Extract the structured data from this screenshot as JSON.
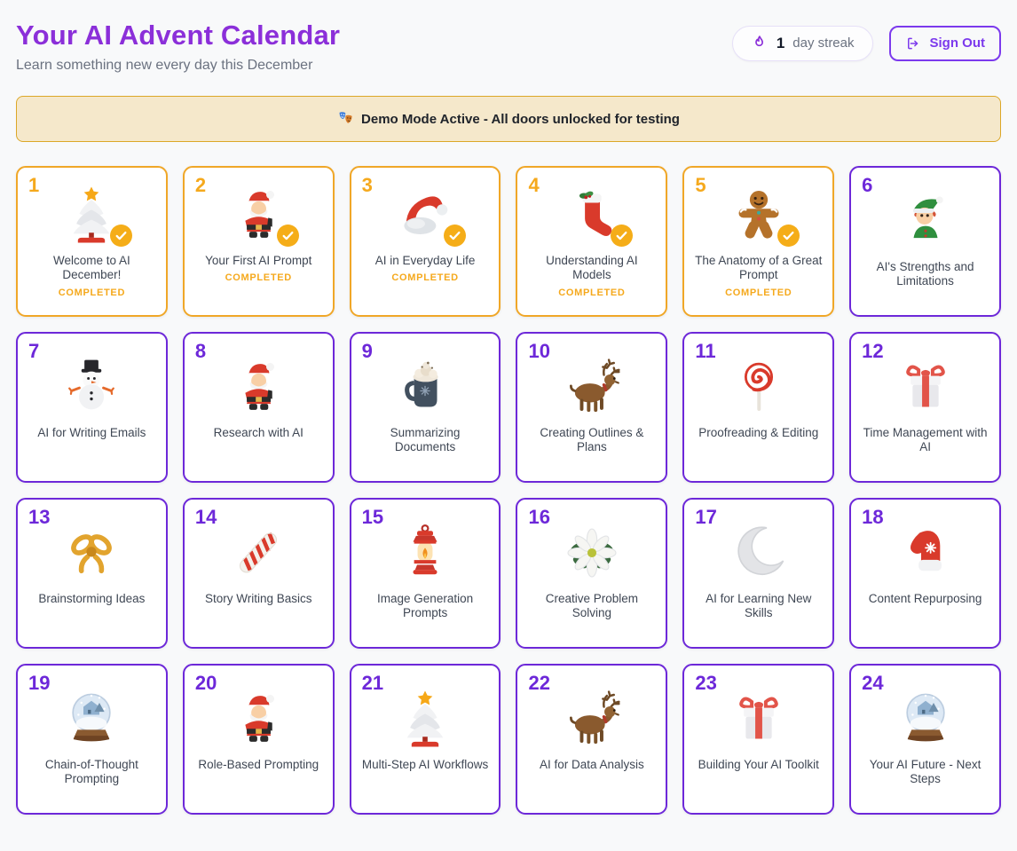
{
  "page": {
    "title": "Your AI Advent Calendar",
    "subtitle": "Learn something new every day this December"
  },
  "header": {
    "streak_count": "1",
    "streak_label": "day streak",
    "streak_icon": "flame-icon",
    "sign_out_label": "Sign Out",
    "sign_out_icon": "logout-icon"
  },
  "banner": {
    "icon": "theater-masks-icon",
    "text": "Demo Mode Active - All doors unlocked for testing"
  },
  "colors": {
    "heading_purple": "#8b2fd9",
    "door_border_purple": "#6d28d9",
    "completed_amber": "#f5a91d",
    "banner_bg": "#f5e8cb",
    "banner_border": "#dca728",
    "page_bg": "#f8f9fa"
  },
  "doors": [
    {
      "number": "1",
      "title": "Welcome to AI December!",
      "icon": "christmas-tree",
      "completed": true,
      "status": "COMPLETED"
    },
    {
      "number": "2",
      "title": "Your First AI Prompt",
      "icon": "santa",
      "completed": true,
      "status": "COMPLETED"
    },
    {
      "number": "3",
      "title": "AI in Everyday Life",
      "icon": "santa-hat",
      "completed": true,
      "status": "COMPLETED"
    },
    {
      "number": "4",
      "title": "Understanding AI Models",
      "icon": "stocking",
      "completed": true,
      "status": "COMPLETED"
    },
    {
      "number": "5",
      "title": "The Anatomy of a Great Prompt",
      "icon": "gingerbread",
      "completed": true,
      "status": "COMPLETED"
    },
    {
      "number": "6",
      "title": "AI's Strengths and Limitations",
      "icon": "elf",
      "completed": false
    },
    {
      "number": "7",
      "title": "AI for Writing Emails",
      "icon": "snowman",
      "completed": false
    },
    {
      "number": "8",
      "title": "Research with AI",
      "icon": "santa",
      "completed": false
    },
    {
      "number": "9",
      "title": "Summarizing Documents",
      "icon": "cocoa-mug",
      "completed": false
    },
    {
      "number": "10",
      "title": "Creating Outlines & Plans",
      "icon": "reindeer",
      "completed": false
    },
    {
      "number": "11",
      "title": "Proofreading & Editing",
      "icon": "lollipop",
      "completed": false
    },
    {
      "number": "12",
      "title": "Time Management with AI",
      "icon": "gift",
      "completed": false
    },
    {
      "number": "13",
      "title": "Brainstorming Ideas",
      "icon": "ribbon-bow",
      "completed": false
    },
    {
      "number": "14",
      "title": "Story Writing Basics",
      "icon": "candy-cane",
      "completed": false
    },
    {
      "number": "15",
      "title": "Image Generation Prompts",
      "icon": "lantern",
      "completed": false
    },
    {
      "number": "16",
      "title": "Creative Problem Solving",
      "icon": "flower",
      "completed": false
    },
    {
      "number": "17",
      "title": "AI for Learning New Skills",
      "icon": "crescent-moon",
      "completed": false
    },
    {
      "number": "18",
      "title": "Content Repurposing",
      "icon": "mitten",
      "completed": false
    },
    {
      "number": "19",
      "title": "Chain-of-Thought Prompting",
      "icon": "snow-globe",
      "completed": false
    },
    {
      "number": "20",
      "title": "Role-Based Prompting",
      "icon": "santa",
      "completed": false
    },
    {
      "number": "21",
      "title": "Multi-Step AI Workflows",
      "icon": "christmas-tree",
      "completed": false
    },
    {
      "number": "22",
      "title": "AI for Data Analysis",
      "icon": "reindeer",
      "completed": false
    },
    {
      "number": "23",
      "title": "Building Your AI Toolkit",
      "icon": "gift",
      "completed": false
    },
    {
      "number": "24",
      "title": "Your AI Future - Next Steps",
      "icon": "snow-globe",
      "completed": false
    }
  ]
}
